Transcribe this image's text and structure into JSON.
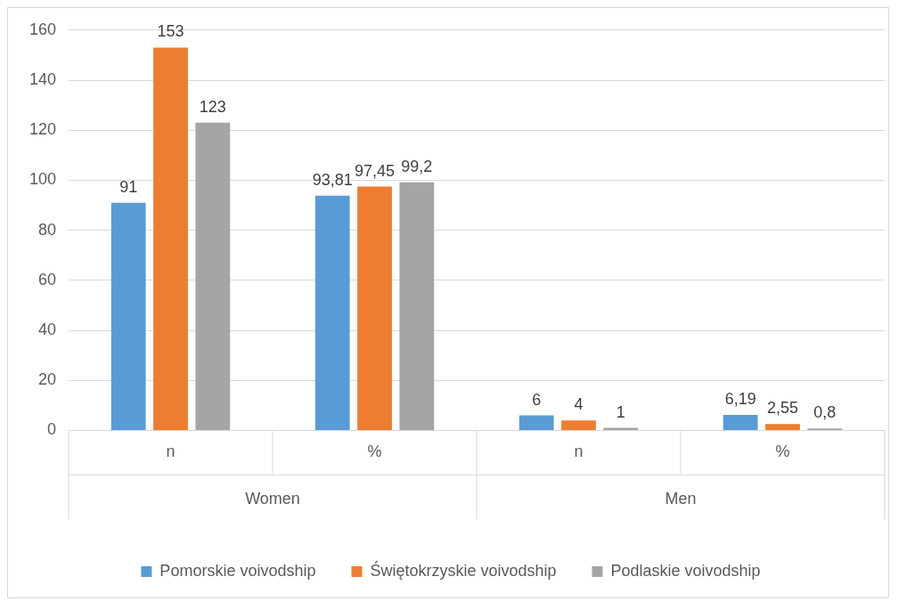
{
  "chart_data": {
    "type": "bar",
    "categories": [
      "n",
      "%",
      "n",
      "%"
    ],
    "series": [
      {
        "name": "Pomorskie voivodship",
        "color": "#5b9bd5",
        "values": [
          91,
          93.81,
          6,
          6.19
        ],
        "value_labels": [
          "91",
          "93,81",
          "6",
          "6,19"
        ]
      },
      {
        "name": "Świętokrzyskie voivodship",
        "color": "#ed7d31",
        "values": [
          153,
          97.45,
          4,
          2.55
        ],
        "value_labels": [
          "153",
          "97,45",
          "4",
          "2,55"
        ]
      },
      {
        "name": "Podlaskie voivodship",
        "color": "#a5a5a5",
        "values": [
          123,
          99.2,
          1,
          0.8
        ],
        "value_labels": [
          "123",
          "99,2",
          "1",
          "0,8"
        ]
      }
    ],
    "annotations": [
      "Women",
      "Men"
    ],
    "ylim": [
      0,
      160
    ],
    "yticks": [
      0,
      20,
      40,
      60,
      80,
      100,
      120,
      140,
      160
    ],
    "grid": "y",
    "legend": "bottom"
  }
}
